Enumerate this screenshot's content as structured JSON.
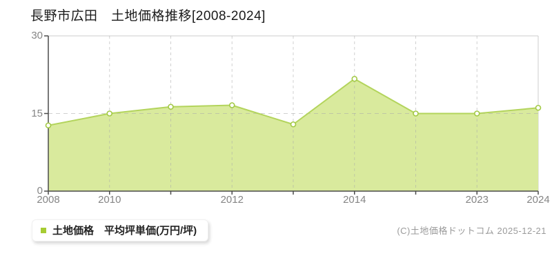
{
  "title": "長野市広田　土地価格推移[2008-2024]",
  "legend": {
    "label": "土地価格　平均坪単価(万円/坪)",
    "marker_color": "#a6cc33"
  },
  "copyright": "(C)土地価格ドットコム 2025-12-21",
  "chart_data": {
    "type": "area",
    "title": "長野市広田 土地価格推移[2008-2024]",
    "categories": [
      "2008",
      "2010",
      "",
      "2012",
      "",
      "2014",
      "",
      "2023",
      "2024"
    ],
    "series": [
      {
        "name": "土地価格 平均坪単価(万円/坪)",
        "values": [
          12.7,
          15.0,
          16.3,
          16.6,
          12.9,
          21.7,
          15.0,
          15.0,
          16.1
        ]
      }
    ],
    "xlabel": "",
    "ylabel": "",
    "ylim": [
      0,
      30
    ],
    "yticks": [
      0,
      15,
      30
    ],
    "grid": {
      "vertical": "dashed",
      "horizontal_at": [
        15
      ]
    },
    "legend_position": "bottom-left",
    "colors": {
      "area_fill": "#d9ea9d",
      "line": "#b3d45c",
      "marker_fill": "#ffffff",
      "marker_stroke": "#a2c944",
      "grid": "#aaaaaa",
      "axis": "#4a4a4a",
      "tick_label": "#858585",
      "border": "#cccccc"
    }
  }
}
